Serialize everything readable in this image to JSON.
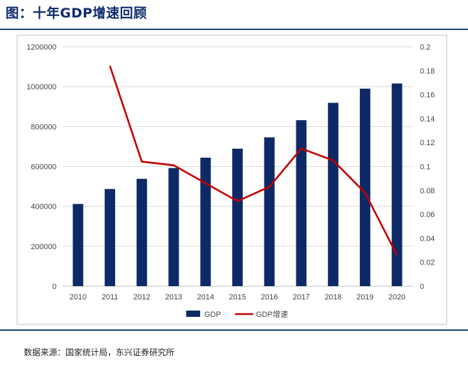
{
  "header": {
    "title": "图：十年GDP增速回顾"
  },
  "footer": {
    "source": "数据来源：国家统计局，东兴证券研究所"
  },
  "colors": {
    "gdp_bar": "#0e2a66",
    "growth_line": "#c00000",
    "accent": "#1f3f7a"
  },
  "chart_data": {
    "type": "bar",
    "categories": [
      "2010",
      "2011",
      "2012",
      "2013",
      "2014",
      "2015",
      "2016",
      "2017",
      "2018",
      "2019",
      "2020"
    ],
    "series": [
      {
        "name": "GDP",
        "type": "bar",
        "axis": "left",
        "values": [
          412000,
          487000,
          538000,
          592000,
          644000,
          689000,
          746000,
          832000,
          919000,
          990000,
          1016000
        ]
      },
      {
        "name": "GDP增速",
        "type": "line",
        "axis": "right",
        "values": [
          null,
          0.184,
          0.104,
          0.101,
          0.086,
          0.071,
          0.083,
          0.115,
          0.105,
          0.078,
          0.026
        ]
      }
    ],
    "y_left": {
      "min": 0,
      "max": 1200000,
      "ticks": [
        "0",
        "200000",
        "400000",
        "600000",
        "800000",
        "1000000",
        "1200000"
      ]
    },
    "y_right": {
      "min": 0,
      "max": 0.2,
      "ticks": [
        "0",
        "0.02",
        "0.04",
        "0.06",
        "0.08",
        "0.1",
        "0.12",
        "0.14",
        "0.16",
        "0.18",
        "0.2"
      ]
    },
    "grid": true,
    "legend_position": "bottom"
  }
}
